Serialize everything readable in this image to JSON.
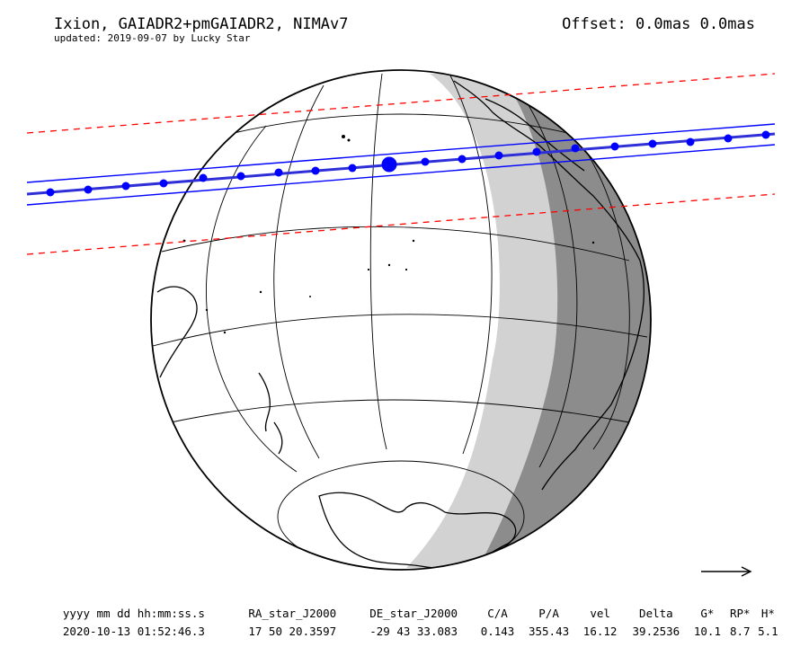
{
  "header": {
    "title": "Ixion, GAIADR2+pmGAIADR2, NIMAv7",
    "subtitle": "updated: 2019-09-07 by Lucky Star",
    "offset": "Offset: 0.0mas 0.0mas"
  },
  "table": {
    "headers": [
      "yyyy mm dd hh:mm:ss.s",
      "RA_star_J2000",
      "DE_star_J2000",
      "C/A",
      "P/A",
      "vel",
      "Delta",
      "G*",
      "RP*",
      "H*"
    ],
    "values": [
      "2020-10-13 01:52:46.3",
      "17 50 20.3597",
      "-29 43 33.083",
      "0.143",
      "355.43",
      "16.12",
      "39.2536",
      "10.1",
      "8.7",
      "5.1"
    ]
  },
  "colors": {
    "shadow_path": "#0000ff",
    "center_line": "#2f2fd8",
    "uncertainty": "#ff0000",
    "night": "#8c8c8c",
    "twilight": "#d2d2d2",
    "coast": "#000000",
    "grid": "#000000"
  },
  "legend": {
    "direction_icon": "arrow-right-icon"
  }
}
